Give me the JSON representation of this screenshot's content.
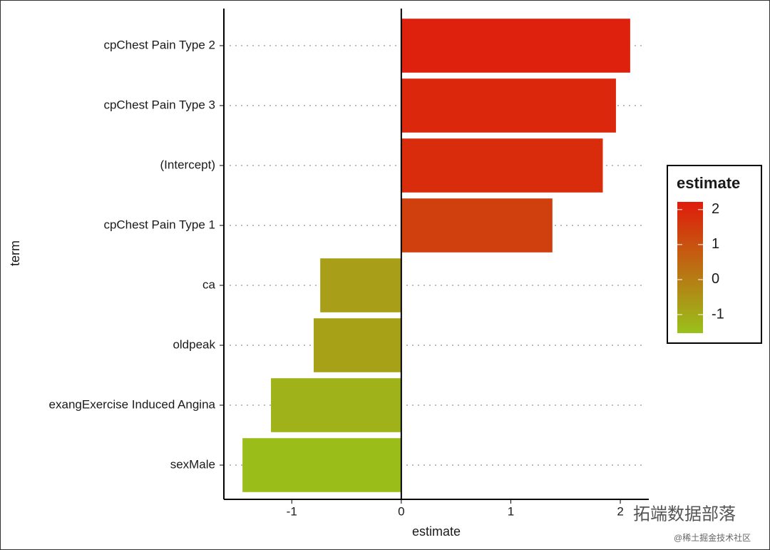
{
  "chart_data": {
    "type": "bar",
    "orientation": "horizontal",
    "categories": [
      "cpChest Pain Type 2",
      "cpChest Pain Type 3",
      "(Intercept)",
      "cpChest Pain Type 1",
      "ca",
      "oldpeak",
      "exangExercise Induced Angina",
      "sexMale"
    ],
    "values": [
      2.09,
      1.96,
      1.84,
      1.38,
      -0.74,
      -0.8,
      -1.19,
      -1.45
    ],
    "x_label": "estimate",
    "y_label": "term",
    "xlim": [
      -1.62,
      2.26
    ],
    "xticks": [
      -1,
      0,
      1,
      2
    ],
    "grid": true,
    "color_low": "#99c11a",
    "color_high": "#e01b0b",
    "legend": {
      "title": "estimate",
      "position": "right",
      "limits": [
        -1.53,
        2.22
      ],
      "ticks": [
        -1,
        0,
        1,
        2
      ]
    },
    "watermark": "拓端数据部落",
    "watermark_sub": "@稀土掘金技术社区"
  }
}
